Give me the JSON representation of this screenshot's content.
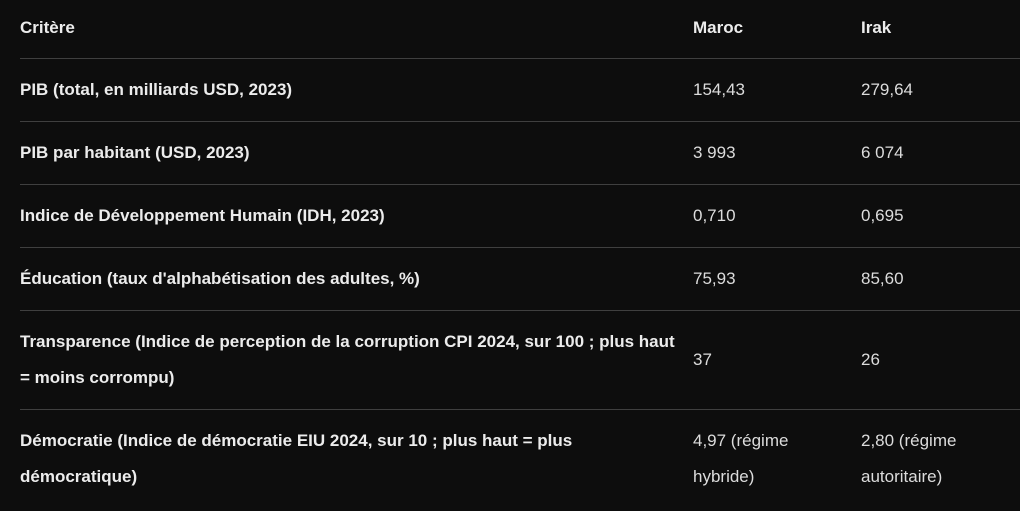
{
  "chart_data": {
    "type": "table",
    "columns": [
      "Critère",
      "Maroc",
      "Irak"
    ],
    "rows": [
      {
        "criterion": "PIB (total, en milliards USD, 2023)",
        "maroc": "154,43",
        "irak": "279,64"
      },
      {
        "criterion": "PIB par habitant (USD, 2023)",
        "maroc": "3 993",
        "irak": "6 074"
      },
      {
        "criterion": "Indice de Développement Humain (IDH, 2023)",
        "maroc": "0,710",
        "irak": "0,695"
      },
      {
        "criterion": "Éducation (taux d'alphabétisation des adultes, %)",
        "maroc": "75,93",
        "irak": "85,60"
      },
      {
        "criterion": "Transparence (Indice de perception de la corruption CPI 2024, sur 100 ; plus haut = moins corrompu)",
        "maroc": "37",
        "irak": "26"
      },
      {
        "criterion": "Démocratie (Indice de démocratie EIU 2024, sur 10 ; plus haut = plus démocratique)",
        "maroc": "4,97 (régime hybride)",
        "irak": "2,80 (régime autoritaire)"
      }
    ]
  },
  "theme": {
    "background": "#0d0d0d",
    "divider": "#3f3f3f",
    "bold_text": "#ececec",
    "value_text": "#dcdcdc"
  }
}
